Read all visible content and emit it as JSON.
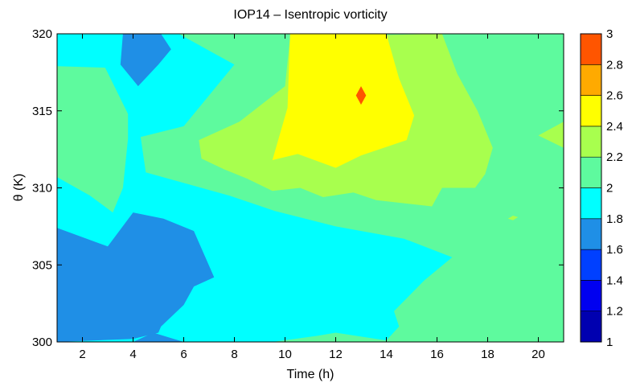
{
  "chart_data": {
    "type": "heatmap",
    "title": "IOP14 – Isentropic vorticity",
    "xlabel": "Time (h)",
    "ylabel": "θ (K)",
    "xlim": [
      1,
      21
    ],
    "ylim": [
      300,
      320
    ],
    "x_ticks": [
      "2",
      "4",
      "6",
      "8",
      "10",
      "12",
      "14",
      "16",
      "18",
      "20"
    ],
    "y_ticks": [
      "300",
      "305",
      "310",
      "315",
      "320"
    ],
    "colorbar": {
      "range": [
        1,
        3
      ],
      "ticks": [
        "1",
        "1.2",
        "1.4",
        "1.6",
        "1.8",
        "2",
        "2.2",
        "2.4",
        "2.6",
        "2.8",
        "3"
      ],
      "levels": [
        {
          "from": 1.0,
          "to": 1.2,
          "color": "#0000b0"
        },
        {
          "from": 1.2,
          "to": 1.4,
          "color": "#0000f0"
        },
        {
          "from": 1.4,
          "to": 1.6,
          "color": "#0040ff"
        },
        {
          "from": 1.6,
          "to": 1.8,
          "color": "#1f8fe6"
        },
        {
          "from": 1.8,
          "to": 2.0,
          "color": "#00ffff"
        },
        {
          "from": 2.0,
          "to": 2.2,
          "color": "#5efa9e"
        },
        {
          "from": 2.2,
          "to": 2.4,
          "color": "#a8ff4e"
        },
        {
          "from": 2.4,
          "to": 2.6,
          "color": "#ffff00"
        },
        {
          "from": 2.6,
          "to": 2.8,
          "color": "#ffaa00"
        },
        {
          "from": 2.8,
          "to": 3.0,
          "color": "#ff5500"
        }
      ]
    },
    "regions": [
      {
        "level": 1.9,
        "points": [
          [
            1,
            300
          ],
          [
            21,
            300
          ],
          [
            21,
            320
          ],
          [
            1,
            320
          ]
        ]
      },
      {
        "level": 2.1,
        "points": [
          [
            9.5,
            300
          ],
          [
            21,
            300
          ],
          [
            21,
            320
          ],
          [
            5.8,
            320
          ],
          [
            8,
            318
          ],
          [
            6,
            314
          ],
          [
            4.3,
            313.3
          ],
          [
            4.5,
            311
          ],
          [
            7.8,
            309.5
          ],
          [
            9.6,
            308.5
          ],
          [
            12,
            307.5
          ],
          [
            14.7,
            306.7
          ],
          [
            16.6,
            305.5
          ],
          [
            15.5,
            304
          ],
          [
            14.3,
            302
          ],
          [
            14.5,
            301
          ],
          [
            14,
            300.1
          ],
          [
            12,
            300.6
          ],
          [
            11.3,
            300.4
          ]
        ]
      },
      {
        "level": 1.7,
        "points": [
          [
            1,
            300
          ],
          [
            6,
            300
          ],
          [
            4.8,
            300.6
          ],
          [
            4,
            300
          ],
          [
            1,
            300
          ]
        ]
      },
      {
        "level": 1.7,
        "points": [
          [
            1,
            307.4
          ],
          [
            3,
            306.2
          ],
          [
            4,
            308.4
          ],
          [
            5.2,
            308
          ],
          [
            6.4,
            307.2
          ],
          [
            7.2,
            304.2
          ],
          [
            6.4,
            303.6
          ],
          [
            6,
            302.4
          ],
          [
            5.1,
            301
          ],
          [
            5,
            300.6
          ],
          [
            4,
            300.2
          ],
          [
            1,
            300
          ]
        ]
      },
      {
        "level": 1.7,
        "points": [
          [
            3.6,
            320
          ],
          [
            5.1,
            320
          ],
          [
            5.5,
            319
          ],
          [
            5,
            318
          ],
          [
            4.2,
            316.6
          ],
          [
            3.5,
            318
          ]
        ]
      },
      {
        "level": 2.1,
        "points": [
          [
            1,
            317.9
          ],
          [
            2.9,
            317.8
          ],
          [
            3.8,
            314.8
          ],
          [
            3.8,
            313.2
          ],
          [
            3.6,
            310
          ],
          [
            3.2,
            308.4
          ],
          [
            2.3,
            309.5
          ],
          [
            1,
            310.7
          ]
        ]
      },
      {
        "level": 2.3,
        "points": [
          [
            6.6,
            313.1
          ],
          [
            8.2,
            314.3
          ],
          [
            10,
            316.6
          ],
          [
            10.2,
            319.8
          ],
          [
            16.2,
            320
          ],
          [
            16.8,
            317.4
          ],
          [
            17.6,
            315
          ],
          [
            18.2,
            312.6
          ],
          [
            17.9,
            310.9
          ],
          [
            17.5,
            310
          ],
          [
            16.2,
            310
          ],
          [
            15.8,
            308.8
          ],
          [
            13.6,
            309.2
          ],
          [
            12.7,
            309.7
          ],
          [
            11.5,
            309.4
          ],
          [
            10.6,
            310
          ],
          [
            9.5,
            309.8
          ],
          [
            8.5,
            310.6
          ],
          [
            7.6,
            311.2
          ],
          [
            6.7,
            311.9
          ]
        ]
      },
      {
        "level": 2.5,
        "points": [
          [
            9.5,
            311.8
          ],
          [
            10.5,
            312.2
          ],
          [
            12,
            311.3
          ],
          [
            13,
            312.1
          ],
          [
            14.8,
            313.1
          ],
          [
            15.1,
            314.7
          ],
          [
            14.5,
            317.1
          ],
          [
            14,
            320
          ],
          [
            10.2,
            320
          ],
          [
            10.1,
            315.2
          ]
        ]
      },
      {
        "level": 2.9,
        "points": [
          [
            13,
            316.6
          ],
          [
            13.2,
            316
          ],
          [
            13,
            315.4
          ],
          [
            12.8,
            316
          ]
        ]
      },
      {
        "level": 2.3,
        "points": [
          [
            21,
            312.6
          ],
          [
            20,
            313.4
          ],
          [
            21,
            314.3
          ]
        ]
      },
      {
        "level": 2.3,
        "points": [
          [
            18.8,
            308.0
          ],
          [
            19,
            307.9
          ],
          [
            19.2,
            308.1
          ],
          [
            19,
            308.2
          ]
        ]
      }
    ]
  }
}
